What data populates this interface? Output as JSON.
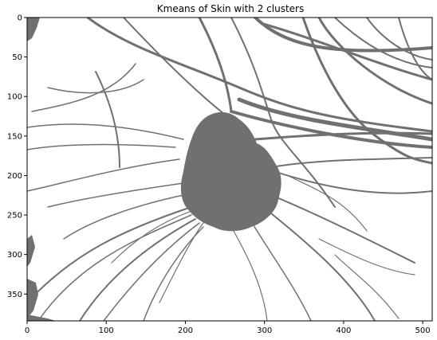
{
  "title": "Kmeans of Skin with 2 clusters",
  "colors": {
    "cluster_foreground": "#707070",
    "cluster_background": "#ffffff",
    "axes_frame": "#000000"
  },
  "axes": {
    "x_ticks": [
      0,
      100,
      200,
      300,
      400,
      500
    ],
    "y_ticks": [
      0,
      50,
      100,
      150,
      200,
      250,
      300,
      350
    ],
    "x_range": [
      0,
      512
    ],
    "y_range": [
      0,
      384
    ]
  }
}
